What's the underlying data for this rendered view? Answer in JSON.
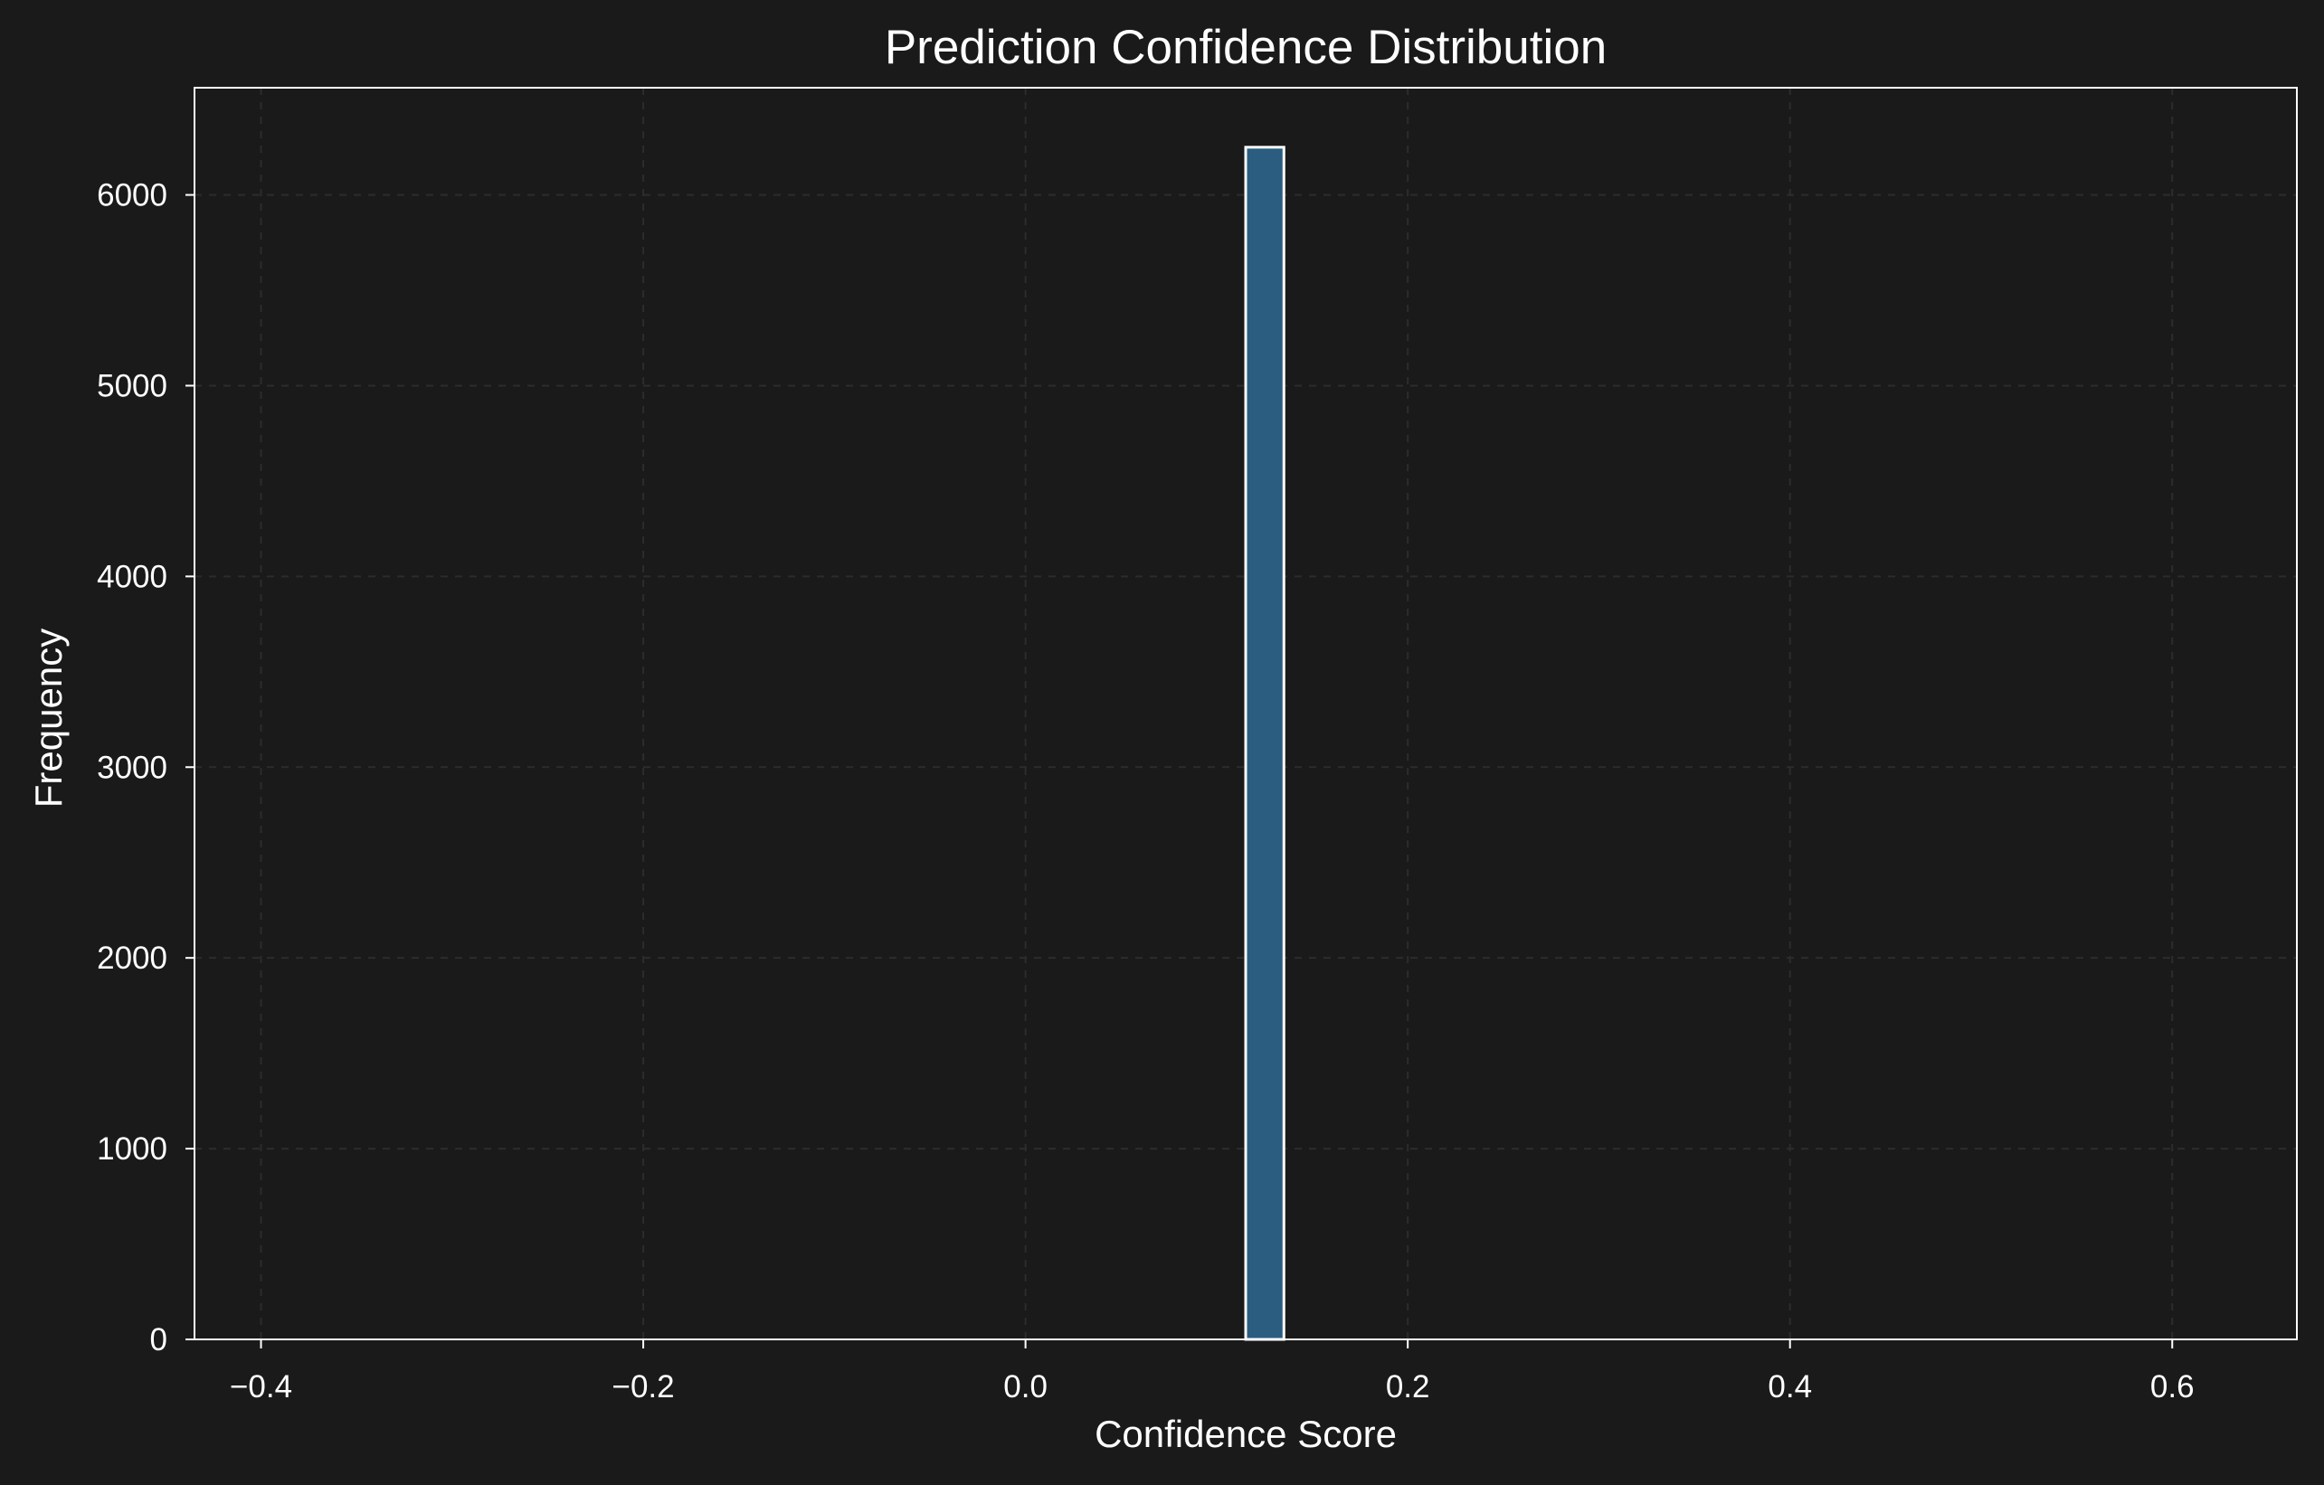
{
  "chart_data": {
    "type": "bar",
    "title": "Prediction Confidence Distribution",
    "xlabel": "Confidence Score",
    "ylabel": "Frequency",
    "xlim": [
      -0.4348,
      0.6652
    ],
    "ylim": [
      0,
      6562
    ],
    "xticks": [
      -0.4,
      -0.2,
      0.0,
      0.2,
      0.4,
      0.6
    ],
    "xtick_labels": [
      "−0.4",
      "−0.2",
      "0.0",
      "0.2",
      "0.4",
      "0.6"
    ],
    "yticks": [
      0,
      1000,
      2000,
      3000,
      4000,
      5000,
      6000
    ],
    "ytick_labels": [
      "0",
      "1000",
      "2000",
      "3000",
      "4000",
      "5000",
      "6000"
    ],
    "grid": true,
    "bins": [
      {
        "start": 0.1152,
        "end": 0.1352,
        "count": 6250
      }
    ],
    "colors": {
      "background": "#1a1a1a",
      "bar_fill": "#2a5d80",
      "bar_edge": "#ffffff",
      "text": "#ffffff"
    }
  }
}
